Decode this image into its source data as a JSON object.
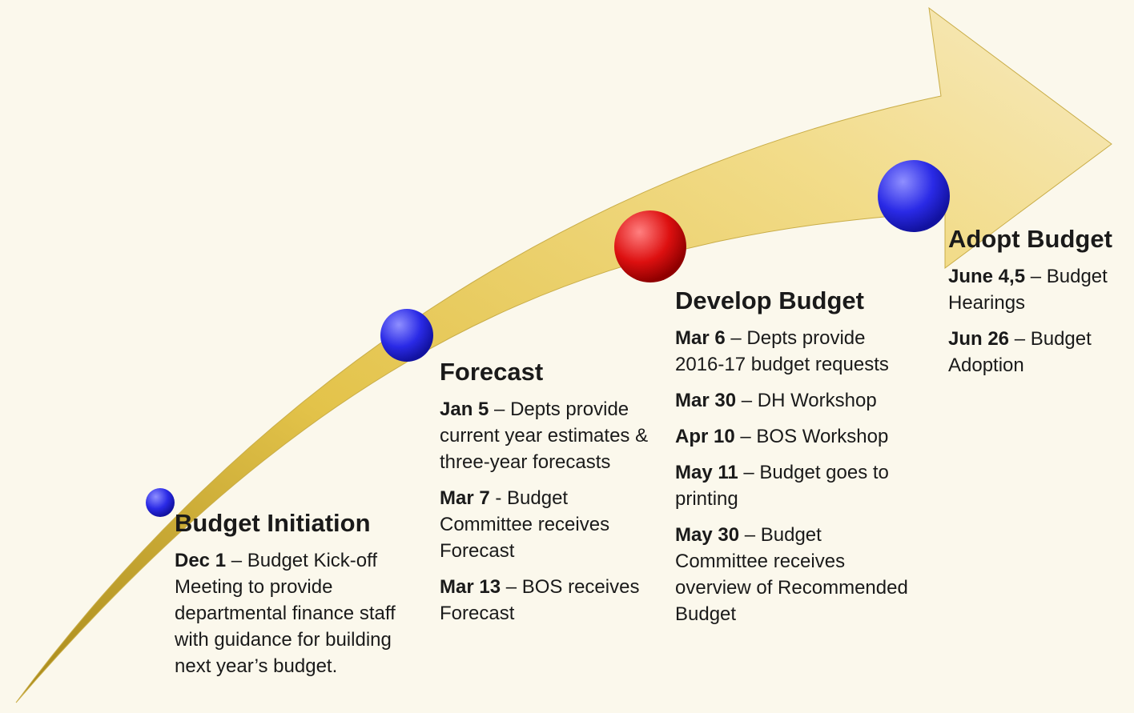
{
  "stages": [
    {
      "title": "Budget Initiation",
      "items": [
        {
          "date": "Dec 1",
          "text": "– Budget Kick-off Meeting to provide departmental finance staff with guidance for building next year’s budget."
        }
      ]
    },
    {
      "title": "Forecast",
      "items": [
        {
          "date": "Jan 5",
          "text": "– Depts provide current year estimates & three-year forecasts"
        },
        {
          "date": "Mar 7",
          "text": "-  Budget Committee receives Forecast"
        },
        {
          "date": "Mar 13",
          "text": "– BOS receives Forecast"
        }
      ]
    },
    {
      "title": "Develop Budget",
      "items": [
        {
          "date": "Mar 6",
          "text": "– Depts provide 2016-17 budget requests"
        },
        {
          "date": "Mar 30",
          "text": "– DH Workshop"
        },
        {
          "date": "Apr 10",
          "text": "– BOS Workshop"
        },
        {
          "date": "May 11",
          "text": "– Budget goes to printing"
        },
        {
          "date": "May 30",
          "text": "– Budget Committee receives overview of Recommended Budget"
        }
      ]
    },
    {
      "title": "Adopt Budget",
      "items": [
        {
          "date": "June 4,5",
          "text": "– Budget Hearings"
        },
        {
          "date": "Jun 26",
          "text": "– Budget Adoption"
        }
      ]
    }
  ]
}
